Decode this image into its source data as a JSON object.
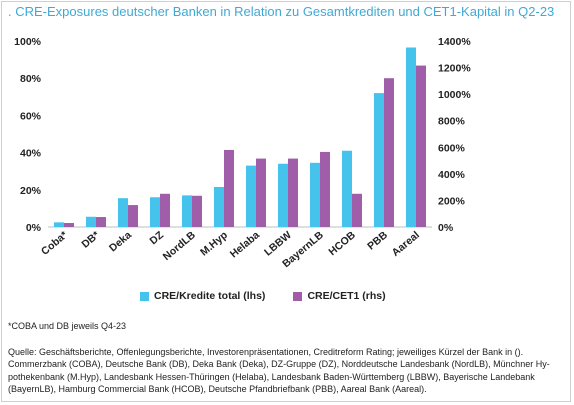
{
  "title": ". CRE-Exposures deutscher Banken in Relation zu Gesamtkrediten und CET1-Kapital in Q2-23",
  "footnote": "*COBA und DB jeweils Q4-23",
  "source": "Quelle: Geschäftsberichte, Offenlegungsberichte, Investorenpräsentationen, Creditreform Rating; jeweiliges Kürzel der Bank in (). Commerzbank (COBA), Deutsche Bank (DB), Deka Bank (Deka), DZ-Gruppe (DZ), Norddeutsche Landesbank (NordLB), Münchner Hy-pothekenbank (M.Hyp), Landesbank Hessen-Thüringen (Helaba), Landesbank Baden-Württemberg (LBBW), Bayerische Landebank (BayernLB), Hamburg Commercial Bank (HCOB), Deutsche Pfandbriefbank (PBB), Aareal Bank (Aareal).",
  "chart_data": {
    "type": "bar",
    "categories": [
      "Coba*",
      "DB*",
      "Deka",
      "DZ",
      "NordLB",
      "M.Hyp",
      "Helaba",
      "LBBW",
      "BayernLB",
      "HCOB",
      "PBB",
      "Aareal"
    ],
    "series": [
      {
        "name": "CRE/Kredite total (lhs)",
        "axis": "left",
        "color": "#45c3ec",
        "values": [
          2.5,
          5.5,
          15.5,
          16,
          17,
          21.5,
          33,
          34,
          34.5,
          41,
          72,
          96.5
        ]
      },
      {
        "name": "CRE/CET1 (rhs)",
        "axis": "right",
        "color": "#a05ea8",
        "values": [
          30,
          75,
          165,
          250,
          235,
          580,
          515,
          515,
          565,
          250,
          1120,
          1215
        ]
      }
    ],
    "y_left": {
      "min": 0,
      "max": 100,
      "ticks": [
        "0%",
        "20%",
        "40%",
        "60%",
        "80%",
        "100%"
      ]
    },
    "y_right": {
      "min": 0,
      "max": 1400,
      "ticks": [
        "0%",
        "200%",
        "400%",
        "600%",
        "800%",
        "1000%",
        "1200%",
        "1400%"
      ]
    },
    "grid": false,
    "legend": "bottom"
  }
}
